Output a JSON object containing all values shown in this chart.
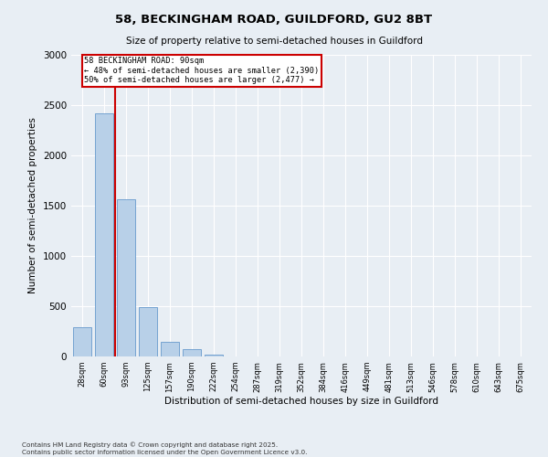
{
  "title_line1": "58, BECKINGHAM ROAD, GUILDFORD, GU2 8BT",
  "title_line2": "Size of property relative to semi-detached houses in Guildford",
  "xlabel": "Distribution of semi-detached houses by size in Guildford",
  "ylabel": "Number of semi-detached properties",
  "bin_labels": [
    "28sqm",
    "60sqm",
    "93sqm",
    "125sqm",
    "157sqm",
    "190sqm",
    "222sqm",
    "254sqm",
    "287sqm",
    "319sqm",
    "352sqm",
    "384sqm",
    "416sqm",
    "449sqm",
    "481sqm",
    "513sqm",
    "546sqm",
    "578sqm",
    "610sqm",
    "643sqm",
    "675sqm"
  ],
  "bar_heights": [
    290,
    2420,
    1560,
    490,
    150,
    70,
    20,
    0,
    0,
    0,
    0,
    0,
    0,
    0,
    0,
    0,
    0,
    0,
    0,
    0,
    0
  ],
  "bar_color": "#b8d0e8",
  "bar_edge_color": "#6699cc",
  "property_bin_index": 2,
  "property_size_label": "58 BECKINGHAM ROAD: 90sqm",
  "pct_smaller": 48,
  "count_smaller": 2390,
  "pct_larger": 50,
  "count_larger": 2477,
  "vline_color": "#cc0000",
  "annotation_box_edge_color": "#cc0000",
  "ylim": [
    0,
    3000
  ],
  "yticks": [
    0,
    500,
    1000,
    1500,
    2000,
    2500,
    3000
  ],
  "background_color": "#e8eef4",
  "grid_color": "#ffffff",
  "footnote_line1": "Contains HM Land Registry data © Crown copyright and database right 2025.",
  "footnote_line2": "Contains public sector information licensed under the Open Government Licence v3.0."
}
